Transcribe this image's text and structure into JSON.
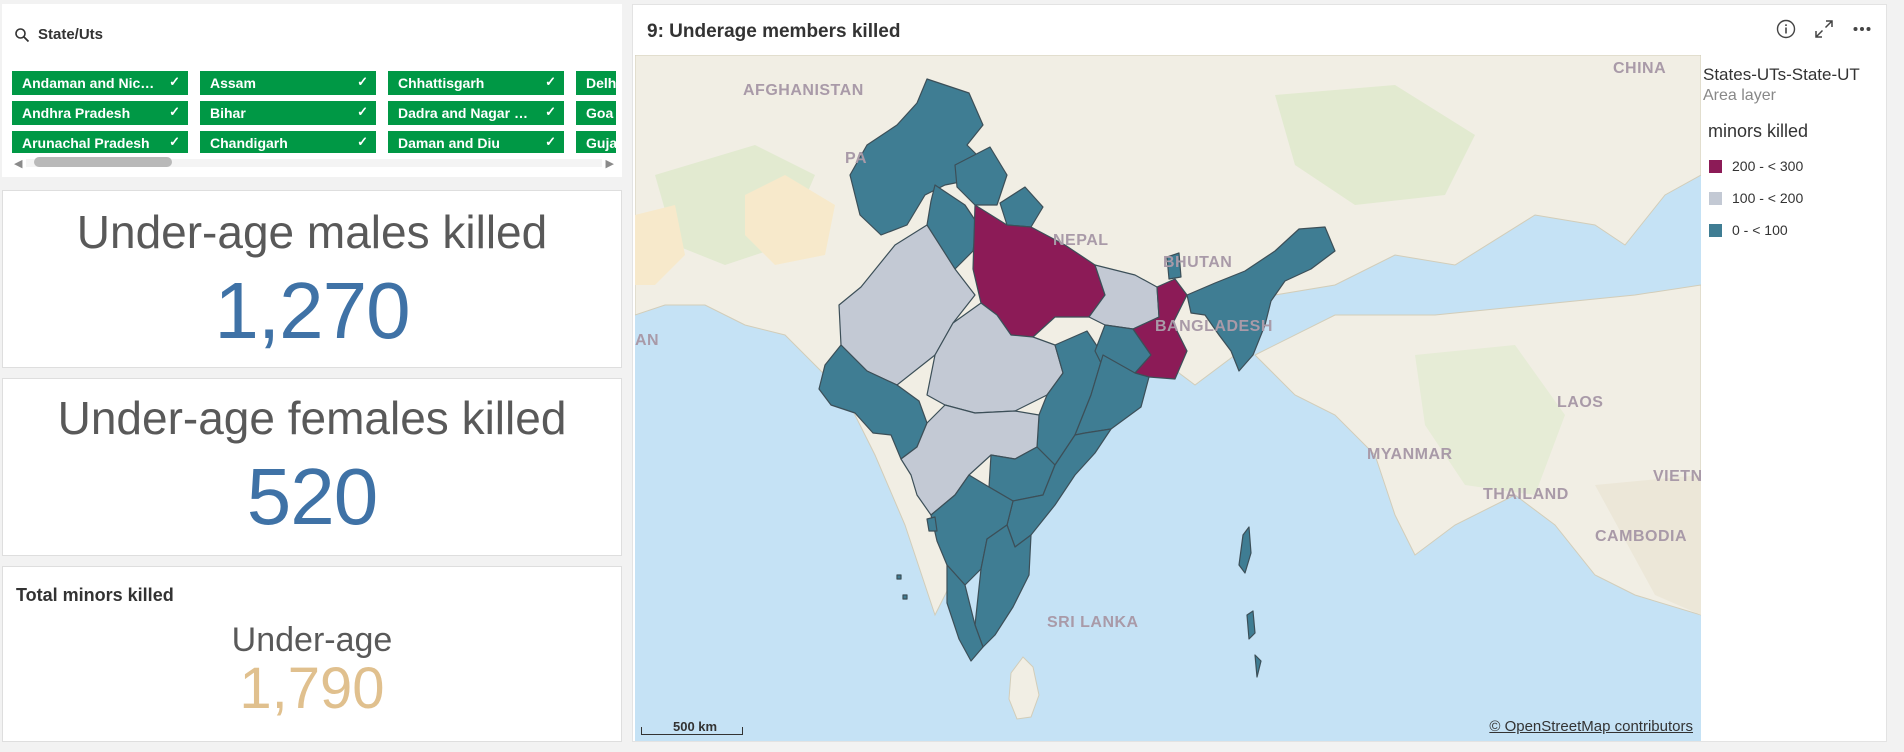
{
  "filter": {
    "title": "State/Uts",
    "chips": [
      [
        "Andaman and Nico…",
        "Andhra Pradesh",
        "Arunachal Pradesh"
      ],
      [
        "Assam",
        "Bihar",
        "Chandigarh"
      ],
      [
        "Chhattisgarh",
        "Dadra and Nagar H…",
        "Daman and Diu"
      ],
      [
        "Delhi",
        "Goa",
        "Gujarat"
      ]
    ],
    "check_glyph": "✓"
  },
  "kpi_males": {
    "title": "Under-age males killed",
    "value": "1,270"
  },
  "kpi_females": {
    "title": "Under-age females killed",
    "value": "520"
  },
  "total": {
    "heading": "Total minors killed",
    "label": "Under-age",
    "value": "1,790"
  },
  "map": {
    "title": "9: Underage members killed",
    "tools": [
      "info-icon",
      "expand-icon",
      "more-icon"
    ],
    "places": [
      "AFGHANISTAN",
      "CHINA",
      "NEPAL",
      "BHUTAN",
      "BANGLADESH",
      "MYANMAR",
      "LAOS",
      "THAILAND",
      "CAMBODIA",
      "VIETN",
      "SRI LANKA",
      "PA",
      "AN"
    ],
    "scale": "500 km",
    "attribution": "© OpenStreetMap contributors",
    "legend": {
      "layer": "States-UTs-State-UT",
      "layer_type": "Area layer",
      "measure": "minors killed",
      "bins": [
        {
          "label": "200 - < 300",
          "color": "#8c1b57"
        },
        {
          "label": "100 - < 200",
          "color": "#c3c9d4"
        },
        {
          "label": "0 - < 100",
          "color": "#3f7d93"
        }
      ]
    }
  }
}
